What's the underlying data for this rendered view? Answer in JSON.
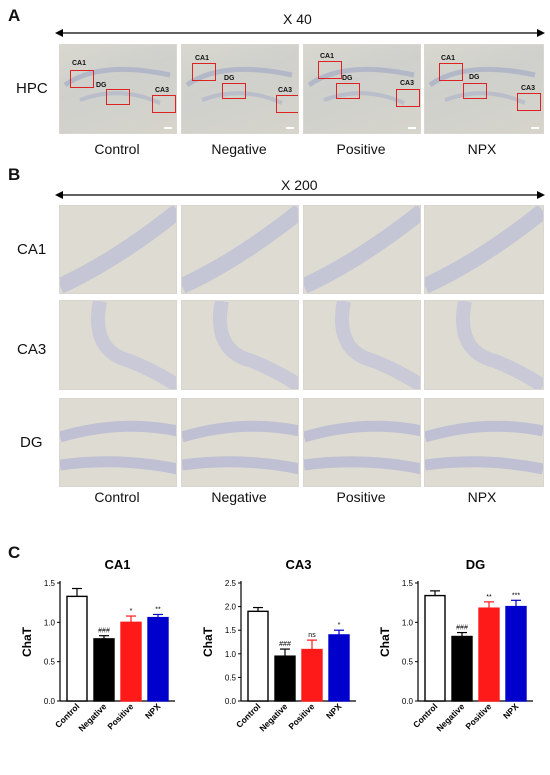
{
  "panel_a": {
    "letter": "A",
    "magnification": "X 40",
    "row_label": "HPC",
    "regions": [
      "CA1",
      "DG",
      "CA3"
    ],
    "groups": [
      "Control",
      "Negative",
      "Positive",
      "NPX"
    ]
  },
  "panel_b": {
    "letter": "B",
    "magnification": "X 200",
    "rows": [
      "CA1",
      "CA3",
      "DG"
    ],
    "groups": [
      "Control",
      "Negative",
      "Positive",
      "NPX"
    ]
  },
  "panel_c": {
    "letter": "C"
  },
  "colors": {
    "control": "#ffffff",
    "negative": "#000000",
    "positive": "#ff1a1a",
    "npx": "#0000cc"
  },
  "chart_data": [
    {
      "type": "bar",
      "title": "CA1",
      "ylabel": "ChaT",
      "categories": [
        "Control",
        "Negative",
        "Positive",
        "NPX"
      ],
      "values": [
        1.33,
        0.79,
        1.0,
        1.06
      ],
      "errors": [
        0.1,
        0.04,
        0.08,
        0.04
      ],
      "annotations": [
        "",
        "###",
        "*",
        "**"
      ],
      "ylim": [
        0,
        1.5
      ],
      "yticks": [
        "0.0",
        "0.5",
        "1.0",
        "1.5"
      ]
    },
    {
      "type": "bar",
      "title": "CA3",
      "ylabel": "ChaT",
      "categories": [
        "Control",
        "Negative",
        "Positive",
        "NPX"
      ],
      "values": [
        1.9,
        0.95,
        1.09,
        1.4
      ],
      "errors": [
        0.08,
        0.15,
        0.2,
        0.1
      ],
      "annotations": [
        "",
        "###",
        "ns",
        "*"
      ],
      "ylim": [
        0,
        2.5
      ],
      "yticks": [
        "0.0",
        "0.5",
        "1.0",
        "1.5",
        "2.0",
        "2.5"
      ]
    },
    {
      "type": "bar",
      "title": "DG",
      "ylabel": "ChaT",
      "categories": [
        "Control",
        "Negative",
        "Positive",
        "NPX"
      ],
      "values": [
        1.34,
        0.82,
        1.18,
        1.2
      ],
      "errors": [
        0.06,
        0.05,
        0.08,
        0.08
      ],
      "annotations": [
        "",
        "###",
        "**",
        "***"
      ],
      "ylim": [
        0,
        1.5
      ],
      "yticks": [
        "0.0",
        "0.5",
        "1.0",
        "1.5"
      ]
    }
  ]
}
